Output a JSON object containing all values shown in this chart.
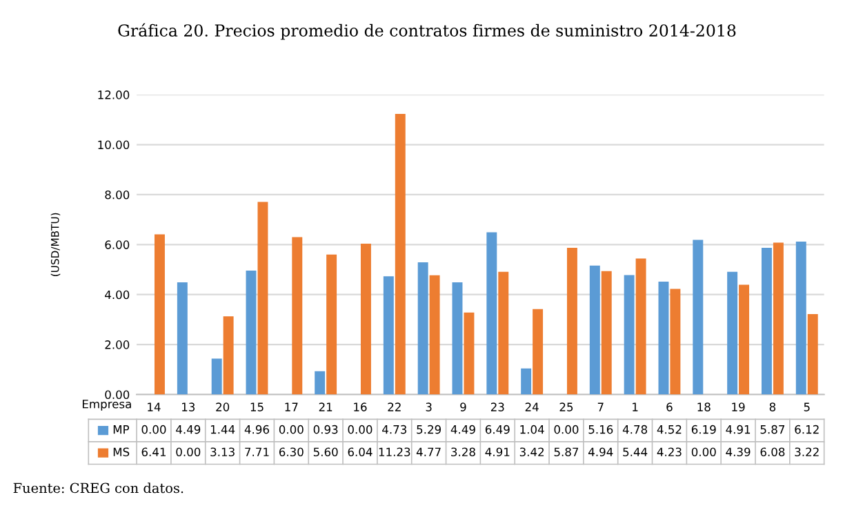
{
  "chart_data": {
    "type": "bar",
    "title": "Gráfica 20. Precios promedio de contratos firmes de suministro 2014-2018",
    "ylabel": "(USD/MBTU)",
    "xlabel": "Empresa",
    "categories": [
      "14",
      "13",
      "20",
      "15",
      "17",
      "21",
      "16",
      "22",
      "3",
      "9",
      "23",
      "24",
      "25",
      "7",
      "1",
      "6",
      "18",
      "19",
      "8",
      "5"
    ],
    "series": [
      {
        "name": "MP",
        "color": "#5b9bd5",
        "values": [
          0.0,
          4.49,
          1.44,
          4.96,
          0.0,
          0.93,
          0.0,
          4.73,
          5.29,
          4.49,
          6.49,
          1.04,
          0.0,
          5.16,
          4.78,
          4.52,
          6.19,
          4.91,
          5.87,
          6.12
        ],
        "value_labels": [
          "0.00",
          "4.49",
          "1.44",
          "4.96",
          "0.00",
          "0.93",
          "0.00",
          "4.73",
          "5.29",
          "4.49",
          "6.49",
          "1.04",
          "0.00",
          "5.16",
          "4.78",
          "4.52",
          "6.19",
          "4.91",
          "5.87",
          "6.12"
        ]
      },
      {
        "name": "MS",
        "color": "#ed7d31",
        "values": [
          6.41,
          0.0,
          3.13,
          7.71,
          6.3,
          5.6,
          6.04,
          11.23,
          4.77,
          3.28,
          4.91,
          3.42,
          5.87,
          4.94,
          5.44,
          4.23,
          0.0,
          4.39,
          6.08,
          3.22
        ],
        "value_labels": [
          "6.41",
          "0.00",
          "3.13",
          "7.71",
          "6.30",
          "5.60",
          "6.04",
          "11.23",
          "4.77",
          "3.28",
          "4.91",
          "3.42",
          "5.87",
          "4.94",
          "5.44",
          "4.23",
          "0.00",
          "4.39",
          "6.08",
          "3.22"
        ]
      }
    ],
    "ylim": [
      0,
      12
    ],
    "yticks": [
      {
        "value": 0,
        "label": "0.00"
      },
      {
        "value": 2,
        "label": "2.00"
      },
      {
        "value": 4,
        "label": "4.00"
      },
      {
        "value": 6,
        "label": "6.00"
      },
      {
        "value": 8,
        "label": "8.00"
      },
      {
        "value": 10,
        "label": "10.00"
      },
      {
        "value": 12,
        "label": "12.00"
      }
    ],
    "grid": "y",
    "legend": "bottom",
    "annotations": [
      "Fuente: CREG con datos."
    ]
  }
}
